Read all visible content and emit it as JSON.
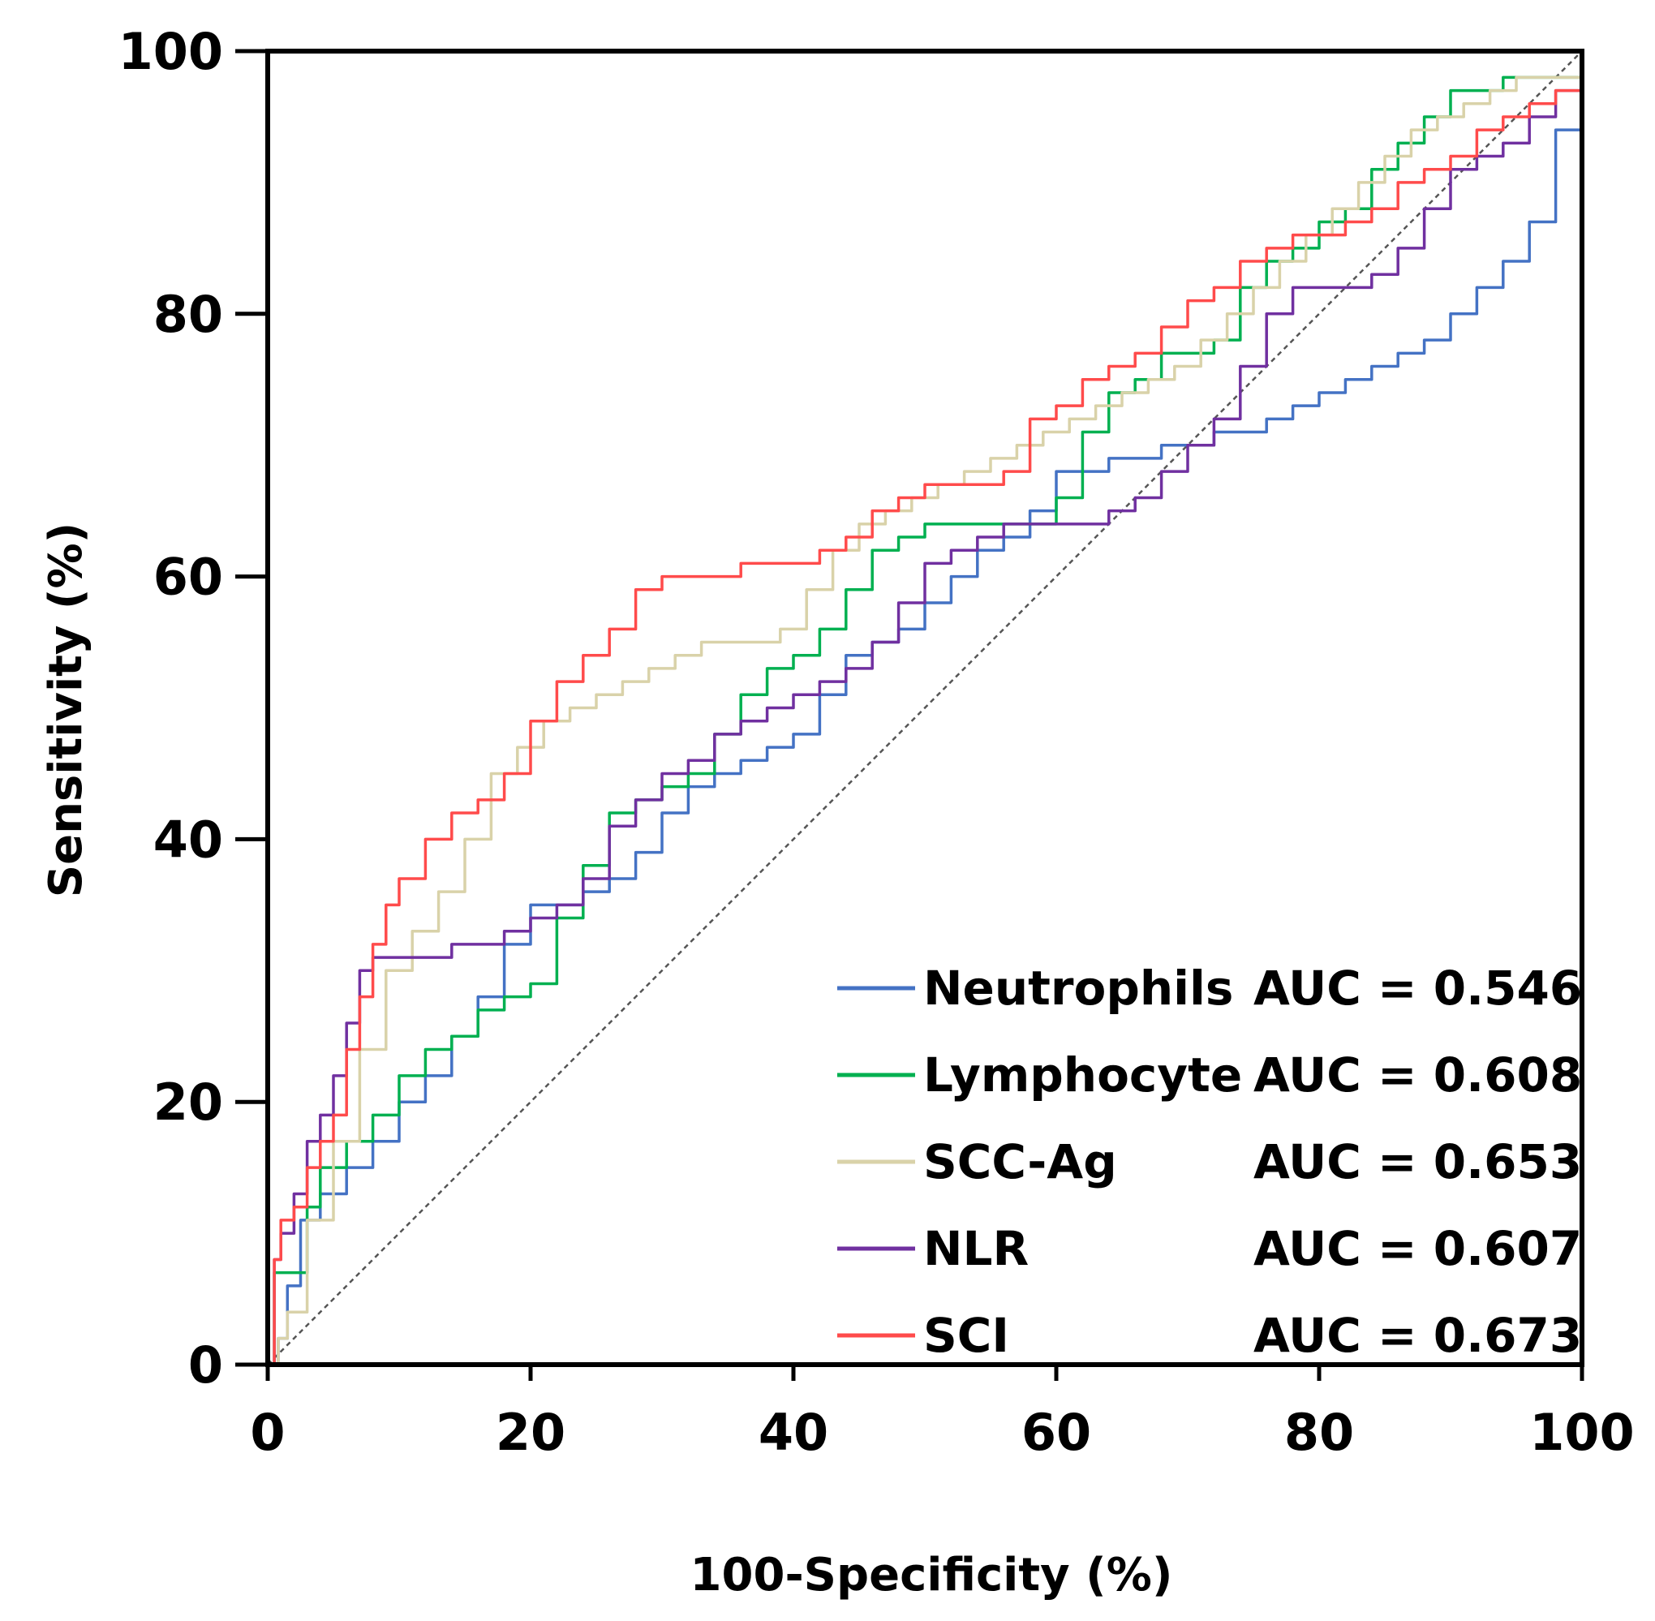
{
  "chart_data": {
    "type": "line",
    "title": "",
    "xlabel": "100-Specificity (%)",
    "ylabel": "Sensitivity (%)",
    "xlim": [
      0,
      100
    ],
    "ylim": [
      0,
      100
    ],
    "xticks": [
      "0",
      "20",
      "40",
      "60",
      "80",
      "100"
    ],
    "yticks": [
      "0",
      "20",
      "40",
      "60",
      "80",
      "100"
    ],
    "grid": false,
    "legend_position": "bottom-right",
    "reference_line": {
      "name": "diagonal",
      "x": [
        0,
        100
      ],
      "y": [
        0,
        100
      ],
      "color": "#555555",
      "style": "dashed"
    },
    "series": [
      {
        "name": "Neutrophils",
        "auc_label": "AUC = 0.546",
        "color": "#4472C4",
        "x": [
          0,
          0.8,
          1.5,
          2.5,
          4,
          6,
          8,
          10,
          12,
          14,
          16,
          18,
          20,
          22,
          24,
          26,
          28,
          30,
          32,
          34,
          36,
          38,
          40,
          42,
          44,
          46,
          48,
          50,
          52,
          54,
          56,
          58,
          60,
          62,
          64,
          66,
          68,
          70,
          72,
          74,
          76,
          78,
          80,
          82,
          84,
          86,
          88,
          90,
          92,
          94,
          96,
          98,
          100
        ],
        "y": [
          0,
          2,
          6,
          11,
          13,
          15,
          17,
          20,
          22,
          25,
          28,
          32,
          35,
          35,
          36,
          37,
          39,
          42,
          44,
          45,
          46,
          47,
          48,
          51,
          54,
          55,
          56,
          58,
          60,
          62,
          63,
          65,
          68,
          68,
          69,
          69,
          70,
          70,
          71,
          71,
          72,
          73,
          74,
          75,
          76,
          77,
          78,
          80,
          82,
          84,
          87,
          94,
          100
        ]
      },
      {
        "name": "Lymphocyte",
        "auc_label": "AUC = 0.608",
        "color": "#00B050",
        "x": [
          0,
          0.5,
          2,
          3,
          4,
          6,
          8,
          10,
          12,
          14,
          16,
          18,
          20,
          22,
          24,
          26,
          28,
          30,
          32,
          34,
          36,
          38,
          40,
          42,
          44,
          46,
          48,
          50,
          52,
          54,
          56,
          58,
          60,
          62,
          64,
          66,
          68,
          70,
          72,
          74,
          76,
          78,
          80,
          82,
          84,
          86,
          88,
          90,
          92,
          94,
          96,
          98,
          100
        ],
        "y": [
          0,
          7,
          7,
          12,
          15,
          17,
          19,
          22,
          24,
          25,
          27,
          28,
          29,
          34,
          38,
          42,
          43,
          44,
          45,
          48,
          51,
          53,
          54,
          56,
          59,
          62,
          63,
          64,
          64,
          64,
          64,
          64,
          66,
          71,
          74,
          75,
          77,
          77,
          78,
          82,
          84,
          85,
          87,
          88,
          91,
          93,
          95,
          97,
          97,
          98,
          98,
          98,
          100
        ]
      },
      {
        "name": "SCC-Ag",
        "auc_label": "AUC = 0.653",
        "color": "#D9D2A9",
        "x": [
          0,
          0.8,
          1.5,
          3,
          5,
          7,
          9,
          11,
          13,
          15,
          17,
          19,
          21,
          23,
          25,
          27,
          29,
          31,
          33,
          35,
          37,
          39,
          41,
          43,
          45,
          47,
          49,
          51,
          53,
          55,
          57,
          59,
          61,
          63,
          65,
          67,
          69,
          71,
          73,
          75,
          77,
          79,
          81,
          83,
          85,
          87,
          89,
          91,
          93,
          95,
          97,
          99,
          100
        ],
        "y": [
          0,
          2,
          4,
          11,
          17,
          24,
          30,
          33,
          36,
          40,
          45,
          47,
          49,
          50,
          51,
          52,
          53,
          54,
          55,
          55,
          55,
          56,
          59,
          62,
          64,
          65,
          66,
          67,
          68,
          69,
          70,
          71,
          72,
          73,
          74,
          75,
          76,
          78,
          80,
          82,
          84,
          86,
          88,
          90,
          92,
          94,
          95,
          96,
          97,
          98,
          98,
          98,
          100
        ]
      },
      {
        "name": "NLR",
        "auc_label": "AUC = 0.607",
        "color": "#7030A0",
        "x": [
          0,
          0.5,
          1,
          2,
          3,
          4,
          5,
          6,
          7,
          8,
          10,
          12,
          14,
          16,
          18,
          20,
          22,
          24,
          26,
          28,
          30,
          32,
          34,
          36,
          38,
          40,
          42,
          44,
          46,
          48,
          50,
          52,
          54,
          56,
          58,
          60,
          62,
          64,
          66,
          68,
          70,
          72,
          74,
          76,
          78,
          80,
          82,
          84,
          86,
          88,
          90,
          92,
          94,
          96,
          98,
          100
        ],
        "y": [
          0,
          8,
          10,
          13,
          17,
          19,
          22,
          26,
          30,
          31,
          31,
          31,
          32,
          32,
          33,
          34,
          35,
          37,
          41,
          43,
          45,
          46,
          48,
          49,
          50,
          51,
          52,
          53,
          55,
          58,
          61,
          62,
          63,
          64,
          64,
          64,
          64,
          65,
          66,
          68,
          70,
          72,
          76,
          80,
          82,
          82,
          82,
          83,
          85,
          88,
          91,
          92,
          93,
          95,
          97,
          100
        ]
      },
      {
        "name": "SCI",
        "auc_label": "AUC = 0.673",
        "color": "#FF4B4B",
        "x": [
          0,
          0.5,
          1,
          2,
          3,
          4,
          5,
          6,
          7,
          8,
          9,
          10,
          12,
          14,
          16,
          18,
          20,
          22,
          24,
          26,
          28,
          30,
          32,
          34,
          36,
          38,
          40,
          42,
          44,
          46,
          48,
          50,
          52,
          54,
          56,
          58,
          60,
          62,
          64,
          66,
          68,
          70,
          72,
          74,
          76,
          78,
          80,
          82,
          84,
          86,
          88,
          90,
          92,
          94,
          96,
          98,
          100
        ],
        "y": [
          0,
          8,
          11,
          12,
          15,
          17,
          19,
          24,
          28,
          32,
          35,
          37,
          40,
          42,
          43,
          45,
          49,
          52,
          54,
          56,
          59,
          60,
          60,
          60,
          61,
          61,
          61,
          62,
          63,
          65,
          66,
          67,
          67,
          67,
          68,
          72,
          73,
          75,
          76,
          77,
          79,
          81,
          82,
          84,
          85,
          86,
          86,
          87,
          88,
          90,
          91,
          92,
          94,
          95,
          96,
          97,
          100
        ]
      }
    ]
  }
}
